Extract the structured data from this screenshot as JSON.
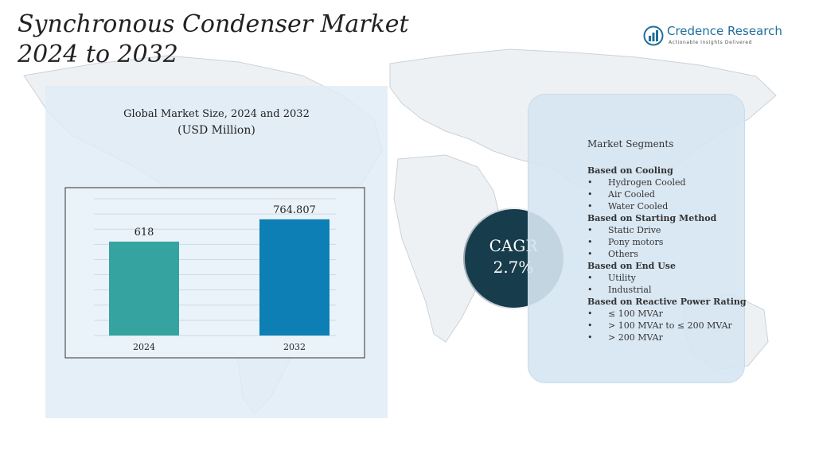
{
  "header": {
    "title_line1": "Synchronous Condenser Market",
    "title_line2": "2024 to 2032"
  },
  "logo": {
    "name": "Credence Research",
    "tagline": "Actionable Insights Delivered",
    "icon": "bar-chart-circle-icon"
  },
  "cagr": {
    "label": "CAGR",
    "value": "2.7%"
  },
  "chart_data": {
    "type": "bar",
    "title": "Global Market Size, 2024 and 2032",
    "unit": "(USD Million)",
    "categories": [
      "2024",
      "2032"
    ],
    "values": [
      618,
      764.807
    ],
    "value_labels": [
      "618",
      "764.807"
    ],
    "ylim": [
      0,
      900
    ],
    "grid": true,
    "colors": [
      "#35a39f",
      "#0d7fb5"
    ]
  },
  "segments": {
    "title": "Market Segments",
    "groups": [
      {
        "heading": "Based on Cooling",
        "items": [
          "Hydrogen Cooled",
          "Air Cooled",
          "Water Cooled"
        ]
      },
      {
        "heading": "Based on Starting Method",
        "items": [
          "Static Drive",
          "Pony motors",
          "Others"
        ]
      },
      {
        "heading": "Based on End Use",
        "items": [
          "Utility",
          "Industrial"
        ]
      },
      {
        "heading": "Based on Reactive Power Rating",
        "items": [
          "≤ 100 MVAr",
          "> 100 MVAr to ≤ 200 MVAr",
          "> 200 MVAr"
        ]
      }
    ]
  },
  "colors": {
    "accent_dark": "#173c4c",
    "panel_blue": "#dfecf6",
    "brand": "#1f6f9c"
  }
}
